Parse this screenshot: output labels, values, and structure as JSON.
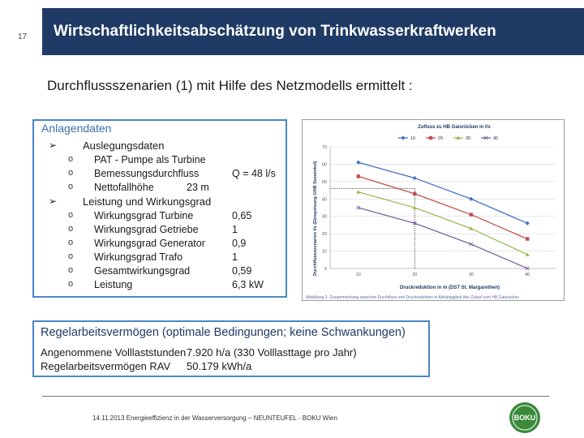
{
  "slide_number": "17",
  "title": "Wirtschaftlichkeitsabschätzung von Trinkwasserkraftwerken",
  "subtitle": "Durchflussszenarien (1) mit Hilfe des Netzmodells ermittelt :",
  "anlagendaten": {
    "title": "Anlagendaten",
    "sections": [
      {
        "heading": "Auslegungsdaten",
        "items": [
          {
            "label": "PAT - Pumpe als Turbine",
            "value": ""
          },
          {
            "label": "Bemessungsdurchfluss",
            "value": "Q = 48 l/s"
          },
          {
            "label": "Nettofallhöhe",
            "value": "23 m"
          }
        ]
      },
      {
        "heading": "Leistung und Wirkungsgrad",
        "items": [
          {
            "label": "Wirkungsgrad Turbine",
            "value": "0,65"
          },
          {
            "label": "Wirkungsgrad Getriebe",
            "value": "1"
          },
          {
            "label": "Wirkungsgrad Generator",
            "value": "0,9"
          },
          {
            "label": "Wirkungsgrad Trafo",
            "value": "1"
          },
          {
            "label": "Gesamtwirkungsgrad",
            "value": "0,59"
          },
          {
            "label": "Leistung",
            "value": "6,3 kW"
          }
        ]
      }
    ]
  },
  "regelarbeit": {
    "title": "Regelarbeitsvermögen (optimale Bedingungen; keine Schwankungen)",
    "line1_label": "Angenommene Volllaststunden",
    "line1_value": "7.920 h/a (330 Volllasttage pro Jahr)",
    "line2_label": "Regelarbeitsvermögen RAV",
    "line2_value": "50.179 kWh/a"
  },
  "footer": {
    "text": "14.11.2013    Energieeffizienz in der Wasserversorgung – NEUNTEUFEL - BOKU Wien"
  },
  "logo": {
    "text": "BOKU",
    "color": "#3a8a3a"
  },
  "colors": {
    "title_bar": "#1f3a64",
    "box_border": "#4a86c8"
  },
  "chart_data": {
    "type": "line",
    "title": "Zufluss zu HB Gaisrücken in l/s",
    "xlabel": "Druckreduktion in m (DST St. Margarethen)",
    "ylabel": "Durchflussszenarien l/s (Einspeisung GHB Seewinkel)",
    "x": [
      10,
      20,
      30,
      40
    ],
    "ylim": [
      0,
      70
    ],
    "yticks": [
      0,
      10,
      20,
      30,
      40,
      50,
      60,
      70
    ],
    "grid": true,
    "legend": "top",
    "series": [
      {
        "name": "10",
        "color": "#4472c4",
        "marker": "diamond",
        "values": [
          61,
          52,
          40,
          26
        ]
      },
      {
        "name": "20",
        "color": "#c0504d",
        "marker": "square",
        "values": [
          53,
          43,
          31,
          17
        ]
      },
      {
        "name": "30",
        "color": "#9bbb59",
        "marker": "triangle",
        "values": [
          44,
          35,
          23,
          8
        ]
      },
      {
        "name": "40",
        "color": "#8064a2",
        "marker": "x",
        "values": [
          35,
          26,
          14,
          0
        ]
      }
    ],
    "reference": {
      "x": 20,
      "y": 46
    },
    "caption": "Abbildung 2: Zusammenhang zwischen Durchfluss und Druckreduktion in Abhängigkeit des Zulauf zum HB Gaisrücken"
  }
}
